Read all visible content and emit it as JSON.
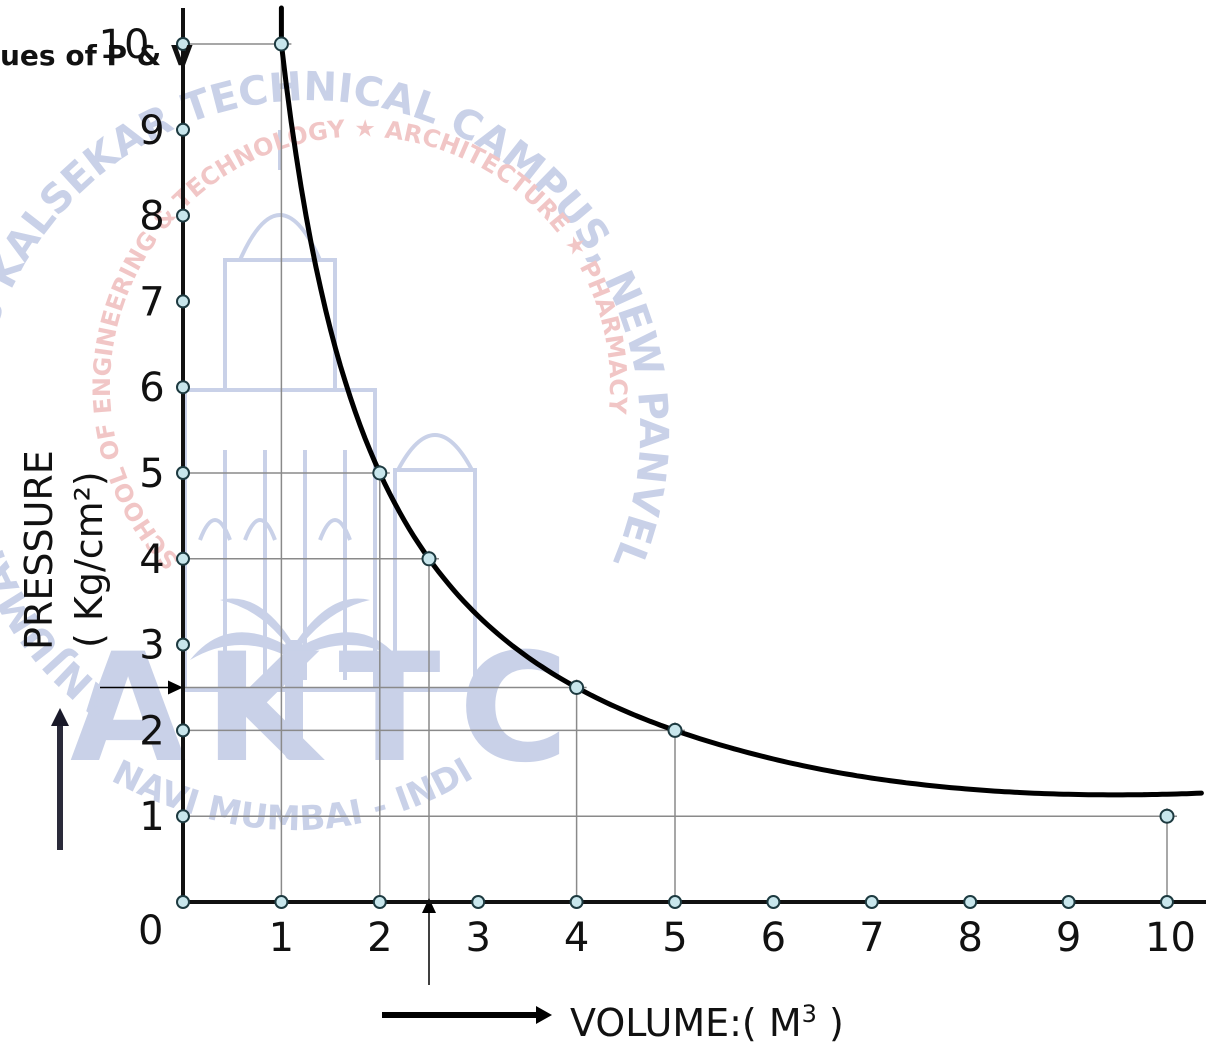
{
  "chart_data": {
    "type": "scatter",
    "title": "ues of P & V",
    "xlabel": "VOLUME:( M",
    "xlabel_sup": "3",
    "xlabel_end": " )",
    "ylabel": "PRESSURE",
    "ylabel_unit": "( Kg/cm²)",
    "origin_label": "0",
    "x_ticks": [
      "1",
      "2",
      "3",
      "4",
      "5",
      "6",
      "7",
      "8",
      "9",
      "10"
    ],
    "y_ticks": [
      "1",
      "2",
      "3",
      "4",
      "5",
      "6",
      "7",
      "8",
      "9",
      "10"
    ],
    "xlim": [
      0,
      10
    ],
    "ylim": [
      0,
      10
    ],
    "points": [
      {
        "x": 1,
        "y": 10
      },
      {
        "x": 2,
        "y": 5
      },
      {
        "x": 2.5,
        "y": 4
      },
      {
        "x": 4,
        "y": 2.5
      },
      {
        "x": 5,
        "y": 2
      },
      {
        "x": 10,
        "y": 1
      }
    ],
    "curve": "P·V = 10",
    "grid": false,
    "legend": "none"
  },
  "watermark": {
    "arc_top": "ANJUMAN-I-ISLAM'S KALSEKAR TECHNICAL CAMPUS, NEW PANVEL",
    "arc_inner": "SCHOOL OF ENGINEERING & TECHNOLOGY ★ ARCHITECTURE ★ PHARMACY",
    "logo": "AKTC",
    "bottom": "NAVI MUMBAI - INDIA",
    "color": "#7f93c9"
  },
  "colors": {
    "axis": "#111111",
    "curve": "#000000",
    "point_fill": "#c8e6ec",
    "point_stroke": "#1d3a40",
    "guide": "#8a8a8a"
  }
}
